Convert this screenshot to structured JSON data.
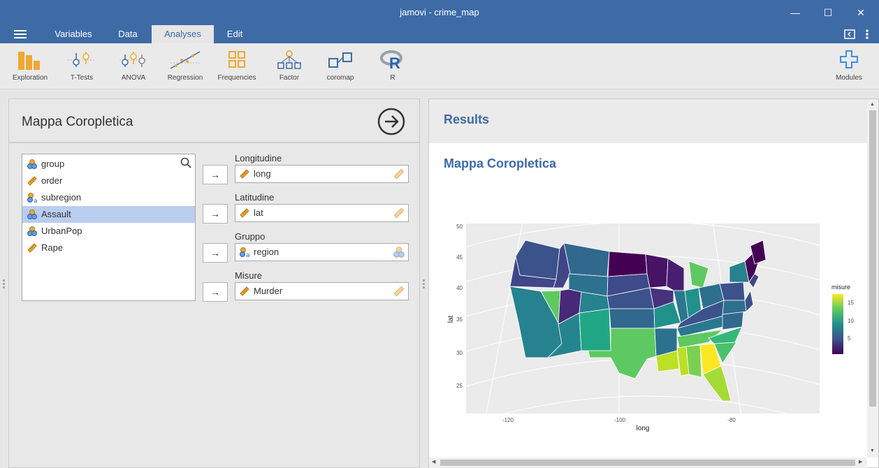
{
  "window": {
    "title": "jamovi - crime_map"
  },
  "menu": {
    "tabs": [
      "Variables",
      "Data",
      "Analyses",
      "Edit"
    ],
    "active": "Analyses"
  },
  "ribbon": {
    "items": [
      "Exploration",
      "T-Tests",
      "ANOVA",
      "Regression",
      "Frequencies",
      "Factor",
      "coromap",
      "R"
    ],
    "modules": "Modules"
  },
  "options": {
    "title": "Mappa Coropletica",
    "variables": [
      {
        "name": "group",
        "type": "nominal"
      },
      {
        "name": "order",
        "type": "continuous"
      },
      {
        "name": "subregion",
        "type": "nominal-text"
      },
      {
        "name": "Assault",
        "type": "nominal",
        "selected": true
      },
      {
        "name": "UrbanPop",
        "type": "nominal"
      },
      {
        "name": "Rape",
        "type": "continuous"
      }
    ],
    "slots": [
      {
        "label": "Longitudine",
        "value": "long",
        "type": "continuous"
      },
      {
        "label": "Latitudine",
        "value": "lat",
        "type": "continuous"
      },
      {
        "label": "Gruppo",
        "value": "region",
        "type": "nominal-text"
      },
      {
        "label": "Misure",
        "value": "Murder",
        "type": "continuous"
      }
    ]
  },
  "results": {
    "heading": "Results",
    "subheading": "Mappa Coropletica",
    "plot": {
      "xlabel": "long",
      "ylabel": "lat",
      "xticks": [
        "-120",
        "-100",
        "-80"
      ],
      "yticks": [
        "25",
        "30",
        "35",
        "40",
        "45",
        "50"
      ],
      "legend_title": "misure",
      "legend_ticks": [
        "15",
        "10",
        "5"
      ]
    }
  },
  "colors": {
    "accent": "#3e6ba6",
    "selection": "#b9cdef"
  }
}
